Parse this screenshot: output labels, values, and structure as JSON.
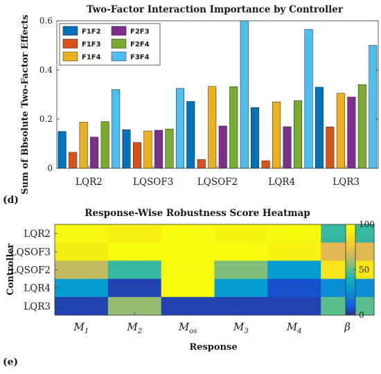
{
  "chart_data": [
    {
      "type": "bar",
      "title": "Two-Factor Interaction Importance by Controller",
      "ylabel": "Sum of Bbsolute Two-Factor Effects",
      "xlabel": "",
      "panel_label": "(d)",
      "categories": [
        "LQR2",
        "LQSOF3",
        "LQSOF2",
        "LQR4",
        "LQR3"
      ],
      "ylim": [
        0,
        0.6
      ],
      "yticks": [
        0,
        0.2,
        0.4,
        0.6
      ],
      "yticklabels": [
        "0",
        "0.2",
        "0.4",
        "0.6"
      ],
      "grid": false,
      "legend_position": "top-left",
      "series": [
        {
          "name": "F1F2",
          "color": "#0072BD",
          "values": [
            0.15,
            0.157,
            0.272,
            0.247,
            0.33
          ]
        },
        {
          "name": "F1F3",
          "color": "#D95319",
          "values": [
            0.065,
            0.105,
            0.036,
            0.031,
            0.168
          ]
        },
        {
          "name": "F1F4",
          "color": "#EDB120",
          "values": [
            0.188,
            0.152,
            0.333,
            0.27,
            0.305
          ]
        },
        {
          "name": "F2F3",
          "color": "#7E2F8E",
          "values": [
            0.127,
            0.155,
            0.172,
            0.169,
            0.29
          ]
        },
        {
          "name": "F2F4",
          "color": "#77AC30",
          "values": [
            0.19,
            0.16,
            0.332,
            0.275,
            0.34
          ]
        },
        {
          "name": "F3F4",
          "color": "#4DBEEE",
          "values": [
            0.32,
            0.325,
            0.605,
            0.565,
            0.5
          ]
        }
      ],
      "legend_order": [
        "F1F2",
        "F2F3",
        "F1F3",
        "F2F4",
        "F1F4",
        "F3F4"
      ]
    },
    {
      "type": "heatmap",
      "title": "Response-Wise Robustness Score Heatmap",
      "xlabel": "Response",
      "ylabel": "Controller",
      "panel_label": "(e)",
      "rows": [
        "LQR2",
        "LQSOF3",
        "LQSOF2",
        "LQR4",
        "LQR3"
      ],
      "columns": [
        {
          "base": "M",
          "sub": "1"
        },
        {
          "base": "M",
          "sub": "2"
        },
        {
          "base": "M",
          "sub": "os"
        },
        {
          "base": "M",
          "sub": "3"
        },
        {
          "base": "M",
          "sub": "4"
        },
        {
          "base": "β",
          "sub": ""
        }
      ],
      "values": [
        [
          97,
          92,
          100,
          95,
          98,
          45
        ],
        [
          90,
          100,
          100,
          100,
          94,
          70
        ],
        [
          65,
          45,
          100,
          55,
          30,
          88
        ],
        [
          30,
          5,
          100,
          30,
          8,
          25
        ],
        [
          5,
          58,
          5,
          5,
          5,
          50
        ]
      ],
      "colorbar": {
        "min": 0,
        "max": 100,
        "ticks": [
          0,
          50,
          100
        ],
        "ticklabels": [
          "0",
          "50",
          "100"
        ],
        "colormap": "parula"
      }
    }
  ]
}
